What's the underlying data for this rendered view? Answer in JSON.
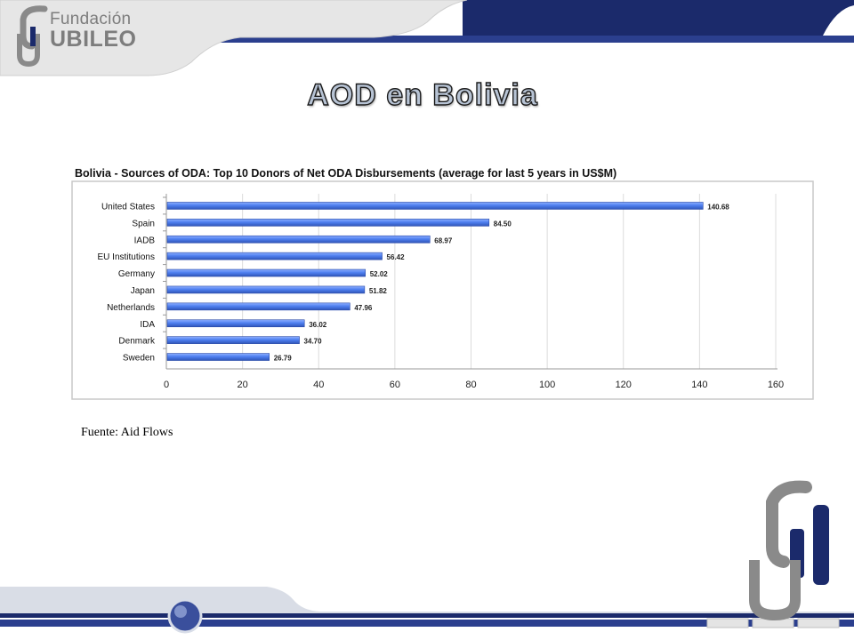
{
  "logo": {
    "line1": "Fundación",
    "line2": "UBILEO"
  },
  "slide_title": "AOD en Bolivia",
  "source_text": "Fuente: Aid Flows",
  "colors": {
    "navy": "#1b2a6b",
    "bar": "#4f80f0",
    "bar_dark": "#2f55b8",
    "logo_gray": "#7d7d7d"
  },
  "chart_data": {
    "type": "bar",
    "orientation": "horizontal",
    "title": "Bolivia - Sources of ODA: Top 10 Donors of Net ODA Disbursements (average for last 5 years in US$M)",
    "categories": [
      "United States",
      "Spain",
      "IADB",
      "EU Institutions",
      "Germany",
      "Japan",
      "Netherlands",
      "IDA",
      "Denmark",
      "Sweden"
    ],
    "values": [
      140.68,
      84.5,
      68.97,
      56.42,
      52.02,
      51.82,
      47.96,
      36.02,
      34.7,
      26.79
    ],
    "value_labels": [
      "140.68",
      "84.50",
      "68.97",
      "56.42",
      "52.02",
      "51.82",
      "47.96",
      "36.02",
      "34.70",
      "26.79"
    ],
    "xticks": [
      0,
      20,
      40,
      60,
      80,
      100,
      120,
      140,
      160
    ],
    "xlim": [
      0,
      160
    ],
    "grid": true,
    "xlabel": "",
    "ylabel": ""
  }
}
